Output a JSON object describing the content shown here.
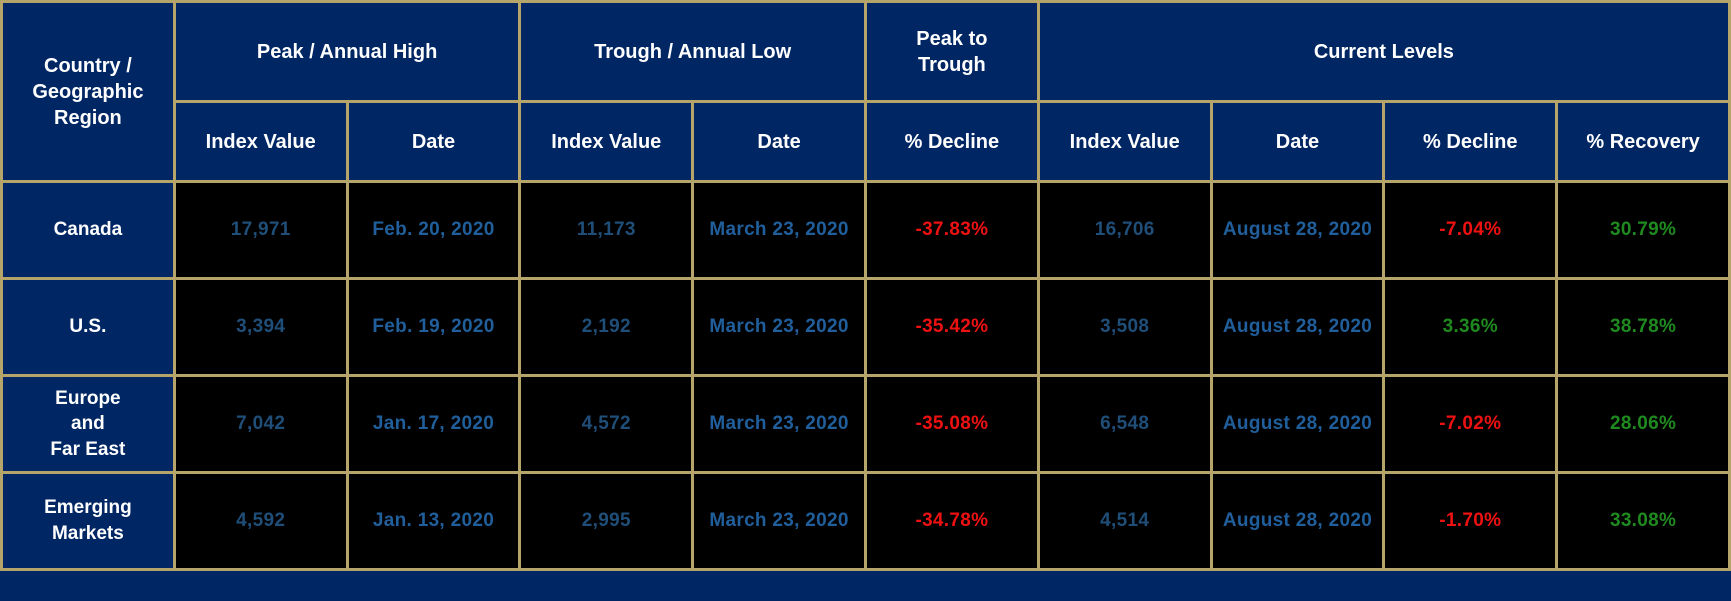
{
  "colors": {
    "navy": "#002664",
    "border_tan": "#b5a56b",
    "value_blue": "#1f4e79",
    "date_blue": "#205f9b",
    "neg_red": "#ee1111",
    "pos_green": "#1f8a1f",
    "white": "#ffffff",
    "black": "#000000"
  },
  "table": {
    "region_header": "Country /\nGeographic\nRegion",
    "groups": {
      "peak": "Peak / Annual High",
      "trough": "Trough / Annual Low",
      "peak_to_trough": "Peak to\nTrough",
      "current": "Current Levels"
    },
    "subheaders": {
      "peak_index": "Index Value",
      "peak_date": "Date",
      "trough_index": "Index Value",
      "trough_date": "Date",
      "ptt_decline": "% Decline",
      "cur_index": "Index Value",
      "cur_date": "Date",
      "cur_decline": "% Decline",
      "cur_recovery": "% Recovery"
    },
    "rows": [
      {
        "region": "Canada",
        "peak_value": "17,971",
        "peak_date": "Feb. 20, 2020",
        "trough_value": "11,173",
        "trough_date": "March 23, 2020",
        "peak_to_trough": "-37.83%",
        "peak_to_trough_class": "neg",
        "current_value": "16,706",
        "current_date": "August 28, 2020",
        "current_decline": "-7.04%",
        "current_decline_class": "neg",
        "recovery": "30.79%",
        "recovery_class": "pos"
      },
      {
        "region": "U.S.",
        "peak_value": "3,394",
        "peak_date": "Feb. 19, 2020",
        "trough_value": "2,192",
        "trough_date": "March 23, 2020",
        "peak_to_trough": "-35.42%",
        "peak_to_trough_class": "neg",
        "current_value": "3,508",
        "current_date": "August 28, 2020",
        "current_decline": "3.36%",
        "current_decline_class": "pos",
        "recovery": "38.78%",
        "recovery_class": "pos"
      },
      {
        "region": "Europe\nand\nFar East",
        "peak_value": "7,042",
        "peak_date": "Jan. 17, 2020",
        "trough_value": "4,572",
        "trough_date": "March 23, 2020",
        "peak_to_trough": "-35.08%",
        "peak_to_trough_class": "neg",
        "current_value": "6,548",
        "current_date": "August 28, 2020",
        "current_decline": "-7.02%",
        "current_decline_class": "neg",
        "recovery": "28.06%",
        "recovery_class": "pos"
      },
      {
        "region": "Emerging\nMarkets",
        "peak_value": "4,592",
        "peak_date": "Jan. 13, 2020",
        "trough_value": "2,995",
        "trough_date": "March 23, 2020",
        "peak_to_trough": "-34.78%",
        "peak_to_trough_class": "neg",
        "current_value": "4,514",
        "current_date": "August 28, 2020",
        "current_decline": "-1.70%",
        "current_decline_class": "neg",
        "recovery": "33.08%",
        "recovery_class": "pos"
      }
    ]
  },
  "chart_data": {
    "type": "table",
    "title": "Market index peak, trough and current levels",
    "columns": [
      "Country / Geographic Region",
      "Peak / Annual High - Index Value",
      "Peak / Annual High - Date",
      "Trough / Annual Low - Index Value",
      "Trough / Annual Low - Date",
      "Peak to Trough - % Decline",
      "Current Levels - Index Value",
      "Current Levels - Date",
      "Current Levels - % Decline",
      "Current Levels - % Recovery"
    ],
    "rows": [
      [
        "Canada",
        17971,
        "Feb. 20, 2020",
        11173,
        "March 23, 2020",
        -37.83,
        16706,
        "August 28, 2020",
        -7.04,
        30.79
      ],
      [
        "U.S.",
        3394,
        "Feb. 19, 2020",
        2192,
        "March 23, 2020",
        -35.42,
        3508,
        "August 28, 2020",
        3.36,
        38.78
      ],
      [
        "Europe and Far East",
        7042,
        "Jan. 17, 2020",
        4572,
        "March 23, 2020",
        -35.08,
        6548,
        "August 28, 2020",
        -7.02,
        28.06
      ],
      [
        "Emerging Markets",
        4592,
        "Jan. 13, 2020",
        2995,
        "March 23, 2020",
        -34.78,
        4514,
        "August 28, 2020",
        -1.7,
        33.08
      ]
    ]
  }
}
